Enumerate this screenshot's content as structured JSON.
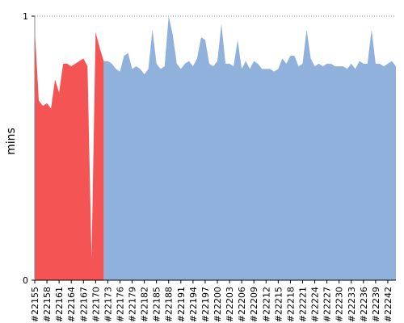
{
  "chart_data": {
    "type": "area",
    "y_label": "mins",
    "categories": [
      "#22155",
      null,
      null,
      "#22158",
      null,
      null,
      "#22161",
      null,
      null,
      "#22164",
      null,
      null,
      "#22167",
      null,
      null,
      "#22170",
      null,
      null,
      "#22173",
      null,
      null,
      "#22176",
      null,
      null,
      "#22179",
      null,
      null,
      "#22182",
      null,
      null,
      "#22185",
      null,
      null,
      "#22188",
      null,
      null,
      "#22191",
      null,
      null,
      "#22194",
      null,
      null,
      "#22197",
      null,
      null,
      "#22200",
      null,
      null,
      "#22203",
      null,
      null,
      "#22206",
      null,
      null,
      "#22209",
      null,
      null,
      "#22212",
      null,
      null,
      "#22215",
      null,
      null,
      "#22218",
      null,
      null,
      "#22221",
      null,
      null,
      "#22224",
      null,
      null,
      "#22227",
      null,
      null,
      "#22230",
      null,
      null,
      "#22233",
      null,
      null,
      "#22236",
      null,
      null,
      "#22239",
      null,
      null,
      "#22242",
      null,
      null
    ],
    "series": [
      {
        "values": [
          0.95,
          0.68,
          0.66,
          0.67,
          0.65,
          0.76,
          0.71,
          0.82,
          0.82,
          0.81,
          0.82,
          0.83,
          0.84,
          0.81,
          0.08,
          0.94,
          0.88,
          0.83,
          0.83,
          0.82,
          0.8,
          0.79,
          0.85,
          0.86,
          0.8,
          0.81,
          0.8,
          0.78,
          0.8,
          0.95,
          0.82,
          0.8,
          0.81,
          1.0,
          0.93,
          0.82,
          0.8,
          0.82,
          0.83,
          0.81,
          0.84,
          0.92,
          0.91,
          0.82,
          0.81,
          0.83,
          0.97,
          0.82,
          0.82,
          0.81,
          0.91,
          0.8,
          0.83,
          0.8,
          0.83,
          0.82,
          0.8,
          0.8,
          0.8,
          0.79,
          0.8,
          0.84,
          0.82,
          0.85,
          0.85,
          0.81,
          0.82,
          0.95,
          0.84,
          0.81,
          0.82,
          0.81,
          0.82,
          0.82,
          0.81,
          0.81,
          0.81,
          0.8,
          0.82,
          0.8,
          0.83,
          0.82,
          0.82,
          0.95,
          0.82,
          0.82,
          0.81,
          0.82,
          0.83,
          0.81
        ],
        "colors": [
          "#f45454",
          "#f45454",
          "#f45454",
          "#f45454",
          "#f45454",
          "#f45454",
          "#f45454",
          "#f45454",
          "#f45454",
          "#f45454",
          "#f45454",
          "#f45454",
          "#f45454",
          "#f45454",
          "#f45454",
          "#f45454",
          "#f45454",
          "#8fb1dc",
          "#8fb1dc",
          "#8fb1dc",
          "#8fb1dc",
          "#8fb1dc",
          "#8fb1dc",
          "#8fb1dc",
          "#8fb1dc",
          "#8fb1dc",
          "#8fb1dc",
          "#8fb1dc",
          "#8fb1dc",
          "#8fb1dc",
          "#8fb1dc",
          "#8fb1dc",
          "#8fb1dc",
          "#8fb1dc",
          "#8fb1dc",
          "#8fb1dc",
          "#8fb1dc",
          "#8fb1dc",
          "#8fb1dc",
          "#8fb1dc",
          "#8fb1dc",
          "#8fb1dc",
          "#8fb1dc",
          "#8fb1dc",
          "#8fb1dc",
          "#8fb1dc",
          "#8fb1dc",
          "#8fb1dc",
          "#8fb1dc",
          "#8fb1dc",
          "#8fb1dc",
          "#8fb1dc",
          "#8fb1dc",
          "#8fb1dc",
          "#8fb1dc",
          "#8fb1dc",
          "#8fb1dc",
          "#8fb1dc",
          "#8fb1dc",
          "#8fb1dc",
          "#8fb1dc",
          "#8fb1dc",
          "#8fb1dc",
          "#8fb1dc",
          "#8fb1dc",
          "#8fb1dc",
          "#8fb1dc",
          "#8fb1dc",
          "#8fb1dc",
          "#8fb1dc",
          "#8fb1dc",
          "#8fb1dc",
          "#8fb1dc",
          "#8fb1dc",
          "#8fb1dc",
          "#8fb1dc",
          "#8fb1dc",
          "#8fb1dc",
          "#8fb1dc",
          "#8fb1dc",
          "#8fb1dc",
          "#8fb1dc",
          "#8fb1dc",
          "#8fb1dc",
          "#8fb1dc",
          "#8fb1dc",
          "#8fb1dc",
          "#8fb1dc",
          "#8fb1dc",
          "#8fb1dc"
        ]
      }
    ],
    "ylim": [
      0,
      1
    ],
    "yticks": [
      0,
      1
    ],
    "grid": true
  }
}
